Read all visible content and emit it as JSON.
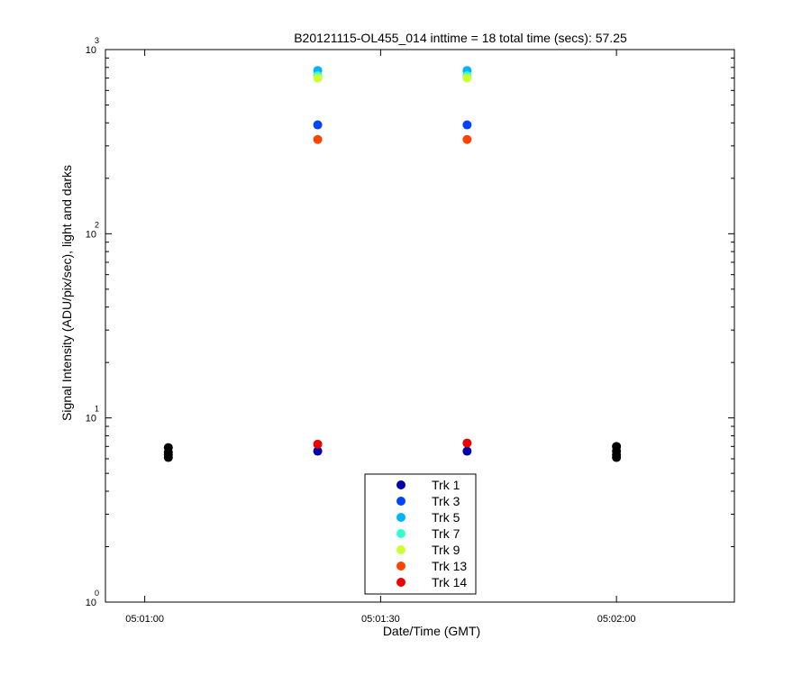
{
  "chart_data": {
    "type": "scatter",
    "title": "B20121115-OL455_014 inttime = 18 total time (secs): 57.25",
    "xlabel": "Date/Time (GMT)",
    "ylabel": "Signal Intensity (ADU/pix/sec), light and darks",
    "y_scale": "log",
    "ylim": [
      1,
      1000
    ],
    "xlim": [
      "05:00:55",
      "05:02:15"
    ],
    "x_ticks": [
      "05:01:00",
      "05:01:30",
      "05:02:00"
    ],
    "y_ticks": [
      {
        "base": "10",
        "exp": "0"
      },
      {
        "base": "10",
        "exp": "1"
      },
      {
        "base": "10",
        "exp": "2"
      },
      {
        "base": "10",
        "exp": "3"
      }
    ],
    "grid": false,
    "legend_position": "bottom-center",
    "series": [
      {
        "name": "",
        "color": "#000000",
        "points": [
          {
            "x": "05:01:03",
            "y": 6.1
          },
          {
            "x": "05:01:03",
            "y": 6.3
          },
          {
            "x": "05:01:03",
            "y": 6.5
          },
          {
            "x": "05:01:03",
            "y": 6.9
          },
          {
            "x": "05:02:00",
            "y": 6.1
          },
          {
            "x": "05:02:00",
            "y": 6.3
          },
          {
            "x": "05:02:00",
            "y": 6.6
          },
          {
            "x": "05:02:00",
            "y": 7.0
          }
        ]
      },
      {
        "name": "Trk 1",
        "color": "#0000aa",
        "points": [
          {
            "x": "05:01:22",
            "y": 6.6
          },
          {
            "x": "05:01:41",
            "y": 6.6
          }
        ]
      },
      {
        "name": "Trk 3",
        "color": "#0044ff",
        "points": [
          {
            "x": "05:01:22",
            "y": 390
          },
          {
            "x": "05:01:41",
            "y": 390
          }
        ]
      },
      {
        "name": "Trk 5",
        "color": "#00b4ff",
        "points": [
          {
            "x": "05:01:22",
            "y": 770
          },
          {
            "x": "05:01:41",
            "y": 770
          }
        ]
      },
      {
        "name": "Trk 7",
        "color": "#33ffcc",
        "points": [
          {
            "x": "05:01:22",
            "y": 720
          },
          {
            "x": "05:01:41",
            "y": 720
          }
        ]
      },
      {
        "name": "Trk 9",
        "color": "#ccff33",
        "points": [
          {
            "x": "05:01:22",
            "y": 700
          },
          {
            "x": "05:01:41",
            "y": 700
          }
        ]
      },
      {
        "name": "Trk 13",
        "color": "#ff4400",
        "points": [
          {
            "x": "05:01:22",
            "y": 325
          },
          {
            "x": "05:01:41",
            "y": 325
          }
        ]
      },
      {
        "name": "Trk 14",
        "color": "#ee0000",
        "points": [
          {
            "x": "05:01:22",
            "y": 7.2
          },
          {
            "x": "05:01:41",
            "y": 7.3
          }
        ]
      }
    ]
  }
}
